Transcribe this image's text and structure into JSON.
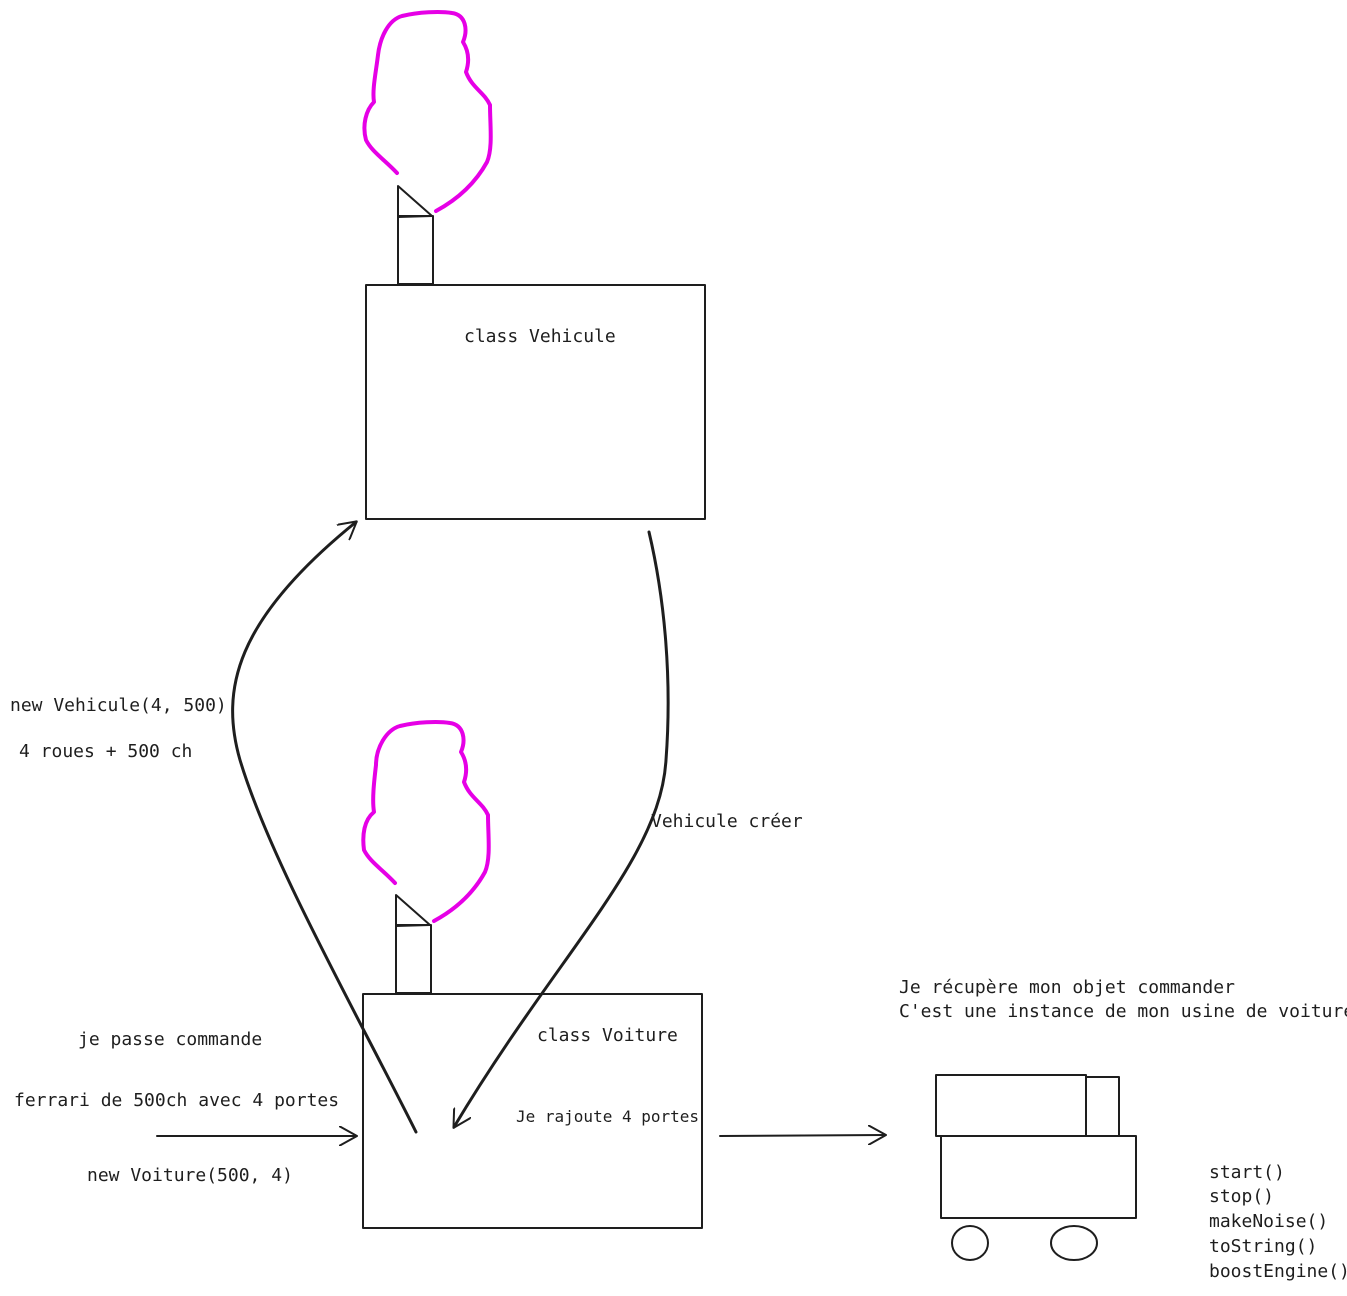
{
  "colors": {
    "ink": "#1e1e1e",
    "smoke": "#e600e6",
    "background": "#ffffff"
  },
  "vehicule": {
    "title": "class Vehicule"
  },
  "voiture": {
    "title": "class Voiture",
    "note": "Je rajoute 4 portes"
  },
  "call_to_vehicule": {
    "line1": "new Vehicule(4, 500)",
    "line2": "4 roues + 500 ch"
  },
  "return_label": "Vehicule créer",
  "order": {
    "line1": "je passe commande",
    "line2": "ferrari de 500ch avec 4 portes",
    "line3": "new Voiture(500, 4)"
  },
  "result": {
    "line1": "Je récupère mon objet commander",
    "line2": "C'est une instance de mon usine de voiture"
  },
  "methods": [
    "start()",
    "stop()",
    "makeNoise()",
    "toString()",
    "boostEngine()"
  ]
}
